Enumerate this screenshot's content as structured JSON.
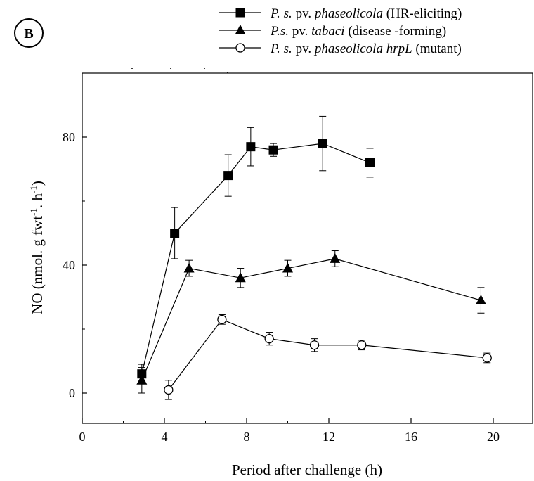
{
  "chart_data": {
    "type": "line",
    "panel_label": "B",
    "xlabel": "Period after challenge  (h)",
    "ylabel": {
      "main": "NO (nmol. g fwt",
      "sup1": "-1",
      "mid": ". h",
      "sup2": "-1",
      "end": ")"
    },
    "xlim": [
      0,
      22
    ],
    "ylim": [
      -10,
      100
    ],
    "xticks": [
      0,
      4,
      8,
      12,
      16,
      20
    ],
    "yticks": [
      0,
      40,
      80
    ],
    "grid": false,
    "legend_placement": "top-right",
    "series": [
      {
        "name": "P. s. pv. phaseolicola (HR-eliciting)",
        "legend_parts": [
          {
            "text": "P. s.",
            "italic": true
          },
          {
            "text": " pv. ",
            "italic": false
          },
          {
            "text": "phaseolicola",
            "italic": true
          },
          {
            "text": " (HR-eliciting)",
            "italic": false
          }
        ],
        "marker": "square-filled",
        "x": [
          2.9,
          4.5,
          7.1,
          8.2,
          9.3,
          11.7,
          14.0
        ],
        "y": [
          6,
          50,
          68,
          77,
          76,
          78,
          72
        ],
        "err": [
          3,
          8,
          6.5,
          6,
          2,
          8.5,
          4.5
        ]
      },
      {
        "name": "P.s. pv. tabaci (disease -forming)",
        "legend_parts": [
          {
            "text": "P.s.",
            "italic": true
          },
          {
            "text": " pv. ",
            "italic": false
          },
          {
            "text": "tabaci",
            "italic": true
          },
          {
            "text": " (disease -forming)",
            "italic": false
          }
        ],
        "marker": "triangle-filled",
        "x": [
          2.9,
          5.2,
          7.7,
          10.0,
          12.3,
          19.4
        ],
        "y": [
          4,
          39,
          36,
          39,
          42,
          29
        ],
        "err": [
          4,
          2.5,
          3,
          2.5,
          2.5,
          4
        ]
      },
      {
        "name": "P. s. pv. phaseolicola hrpL (mutant)",
        "legend_parts": [
          {
            "text": "P. s.",
            "italic": true
          },
          {
            "text": " pv. ",
            "italic": false
          },
          {
            "text": "phaseolicola hrpL",
            "italic": true
          },
          {
            "text": " (mutant)",
            "italic": false
          }
        ],
        "marker": "circle-open",
        "x": [
          4.2,
          6.8,
          9.1,
          11.3,
          13.6,
          19.7
        ],
        "y": [
          1,
          23,
          17,
          15,
          15,
          11
        ],
        "err": [
          3,
          1.5,
          2,
          2,
          1.5,
          1.5
        ]
      }
    ]
  }
}
